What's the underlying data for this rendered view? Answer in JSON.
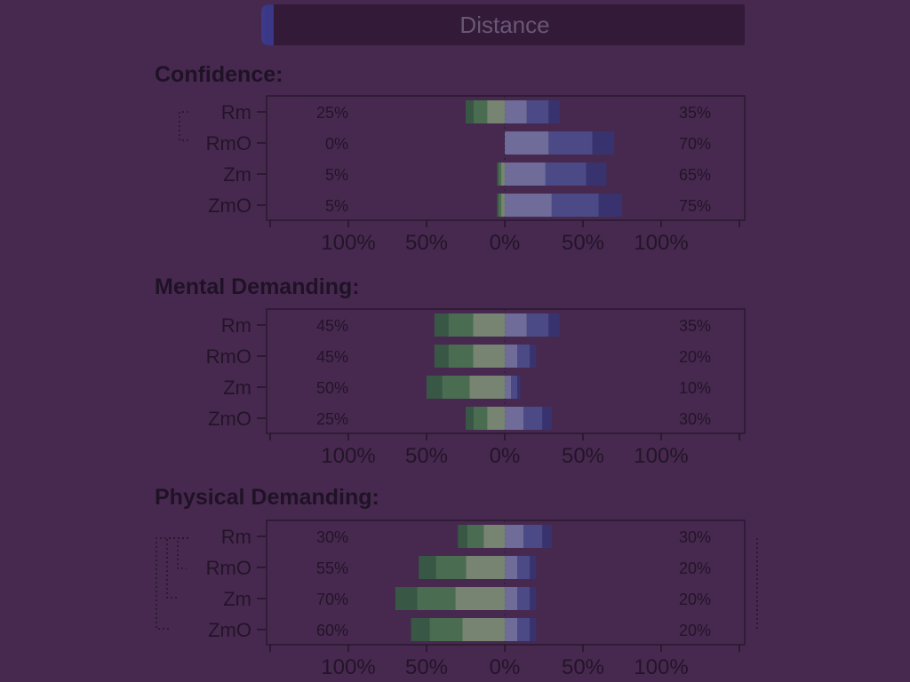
{
  "header": {
    "title": "Distance"
  },
  "chart_data": [
    {
      "type": "bar",
      "title": "Confidence:",
      "categories": [
        "Rm",
        "RmO",
        "Zm",
        "ZmO"
      ],
      "left_percent_labels": [
        "25%",
        "0%",
        "5%",
        "5%"
      ],
      "right_percent_labels": [
        "35%",
        "70%",
        "65%",
        "75%"
      ],
      "negative": [
        25,
        0,
        5,
        5
      ],
      "positive": [
        35,
        70,
        65,
        75
      ],
      "xtick_labels": [
        "100%",
        "50%",
        "0%",
        "50%",
        "100%"
      ],
      "xlim": [
        -100,
        100
      ]
    },
    {
      "type": "bar",
      "title": "Mental Demanding:",
      "categories": [
        "Rm",
        "RmO",
        "Zm",
        "ZmO"
      ],
      "left_percent_labels": [
        "45%",
        "45%",
        "50%",
        "25%"
      ],
      "right_percent_labels": [
        "35%",
        "20%",
        "10%",
        "30%"
      ],
      "negative": [
        45,
        45,
        50,
        25
      ],
      "positive": [
        35,
        20,
        10,
        30
      ],
      "xtick_labels": [
        "100%",
        "50%",
        "0%",
        "50%",
        "100%"
      ],
      "xlim": [
        -100,
        100
      ]
    },
    {
      "type": "bar",
      "title": "Physical Demanding:",
      "categories": [
        "Rm",
        "RmO",
        "Zm",
        "ZmO"
      ],
      "left_percent_labels": [
        "30%",
        "55%",
        "70%",
        "60%"
      ],
      "right_percent_labels": [
        "30%",
        "20%",
        "20%",
        "20%"
      ],
      "negative": [
        30,
        55,
        70,
        60
      ],
      "positive": [
        30,
        20,
        20,
        20
      ],
      "xtick_labels": [
        "100%",
        "50%",
        "0%",
        "50%",
        "100%"
      ],
      "xlim": [
        -100,
        100
      ]
    }
  ],
  "colors": {
    "neg_dark": "#2b7d3c",
    "neg_mid": "#4ca656",
    "neg_light": "#9ed08f",
    "pos_light": "#8fa4d9",
    "pos_mid": "#4f66b4",
    "pos_dark": "#2c3c8a"
  }
}
